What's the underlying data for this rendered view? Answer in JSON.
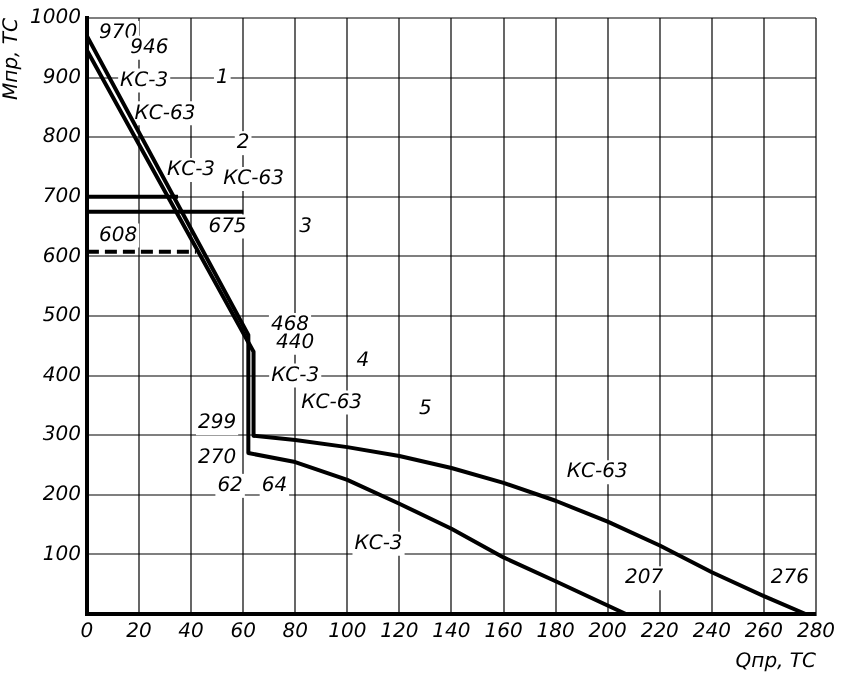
{
  "chart_data": {
    "type": "line",
    "xlabel": "Qпр, ТС",
    "ylabel": "Мпр, ТС",
    "series": [
      {
        "color": "#000000",
        "x": [
          0,
          62,
          62
        ],
        "values": [
          970,
          468,
          270
        ]
      },
      {
        "color": "#000000",
        "x": [
          0,
          64,
          64
        ],
        "values": [
          946,
          440,
          299
        ]
      },
      {
        "color": "#000000",
        "x": [
          0,
          35
        ],
        "values": [
          700,
          700
        ]
      },
      {
        "color": "#000000",
        "x": [
          0,
          60
        ],
        "values": [
          675,
          675
        ]
      },
      {
        "color": "#000000",
        "x": [
          0,
          42
        ],
        "values": [
          608,
          608
        ],
        "line_style": "dashed"
      },
      {
        "color": "#000000",
        "x": [
          62,
          80,
          100,
          120,
          140,
          160,
          180,
          207
        ],
        "values": [
          270,
          255,
          225,
          185,
          143,
          95,
          55,
          0
        ]
      },
      {
        "color": "#000000",
        "x": [
          64,
          80,
          100,
          120,
          140,
          160,
          180,
          200,
          220,
          240,
          260,
          276
        ],
        "values": [
          299,
          292,
          280,
          265,
          245,
          220,
          190,
          155,
          115,
          70,
          30,
          0
        ]
      }
    ],
    "xlim": [
      0,
      280
    ],
    "xticks": [
      0,
      20,
      40,
      60,
      80,
      100,
      120,
      140,
      160,
      180,
      200,
      220,
      240,
      260,
      280
    ],
    "ylim": [
      0,
      1000
    ],
    "yticks": [
      {
        "value": 0,
        "label": null
      },
      100,
      200,
      300,
      400,
      500,
      600,
      700,
      800,
      900,
      1000
    ],
    "grid": true,
    "legend": false,
    "marker": "none",
    "line_style": "solid",
    "annotations": [
      "970",
      "946",
      "КС-3",
      "КС-63",
      "1",
      "КС-3",
      "2",
      "КС-63",
      "675",
      "608",
      "3",
      "468",
      "440",
      "КС-3",
      "КС-63",
      "4",
      "299",
      "270",
      "62",
      "64",
      "5",
      "КС-63",
      "КС-3",
      "207",
      "276"
    ]
  }
}
